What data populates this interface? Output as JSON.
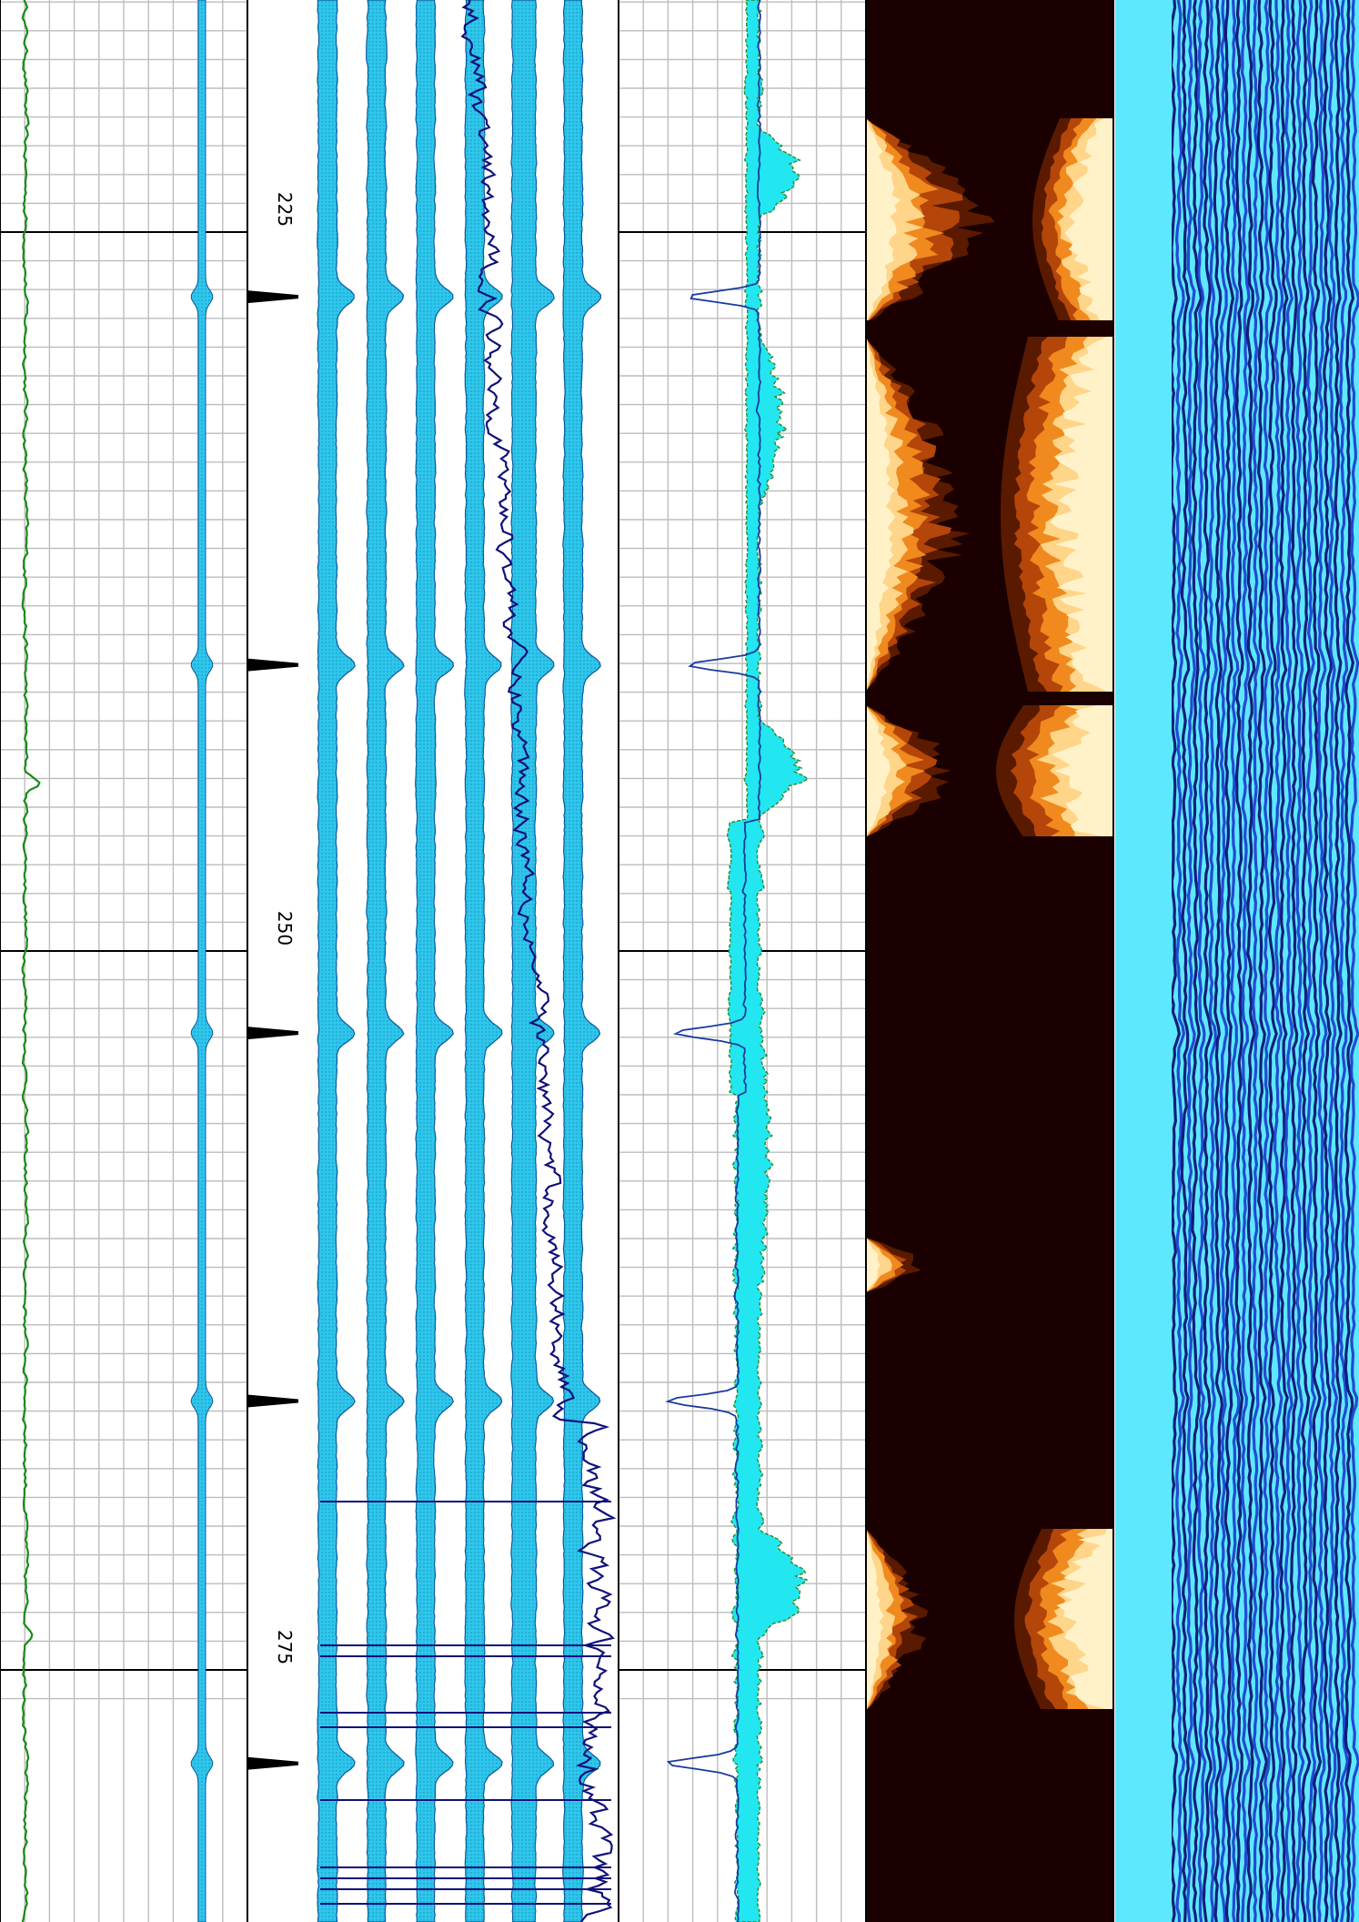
{
  "chart_data": {
    "type": "line",
    "title": "",
    "depth_axis": {
      "range": [
        208.8,
        275.0
      ],
      "labels": [
        "225",
        "250",
        "275"
      ],
      "major_ticks": [
        225,
        250,
        275
      ],
      "minor_step": 5,
      "grid": true
    },
    "collar_marks_depth": [
      228.2,
      241.0,
      253.8,
      266.6,
      279.2
    ],
    "tracks": [
      {
        "name": "",
        "type": "line",
        "color": "#1a8a1a",
        "description_visible": false
      },
      {
        "name": "",
        "type": "filled-trace",
        "color": "#22c8ee"
      },
      {
        "name": "",
        "type": "multi-trace-filled",
        "color": "#22c8ee",
        "overlay_color": "#10107a"
      },
      {
        "name": "",
        "type": "filled-area",
        "color": "#22e6f0",
        "outline_color": "#2a8a2a"
      },
      {
        "name": "",
        "type": "heatmap",
        "palette": [
          "#1a0000",
          "#5a1a00",
          "#b4460a",
          "#f08a1e",
          "#ffd58a",
          "#fff2c8"
        ]
      },
      {
        "name": "",
        "type": "waveform-image",
        "palette": [
          "#5ee8ff",
          "#1a3acc",
          "#0a0a6a"
        ]
      }
    ]
  }
}
